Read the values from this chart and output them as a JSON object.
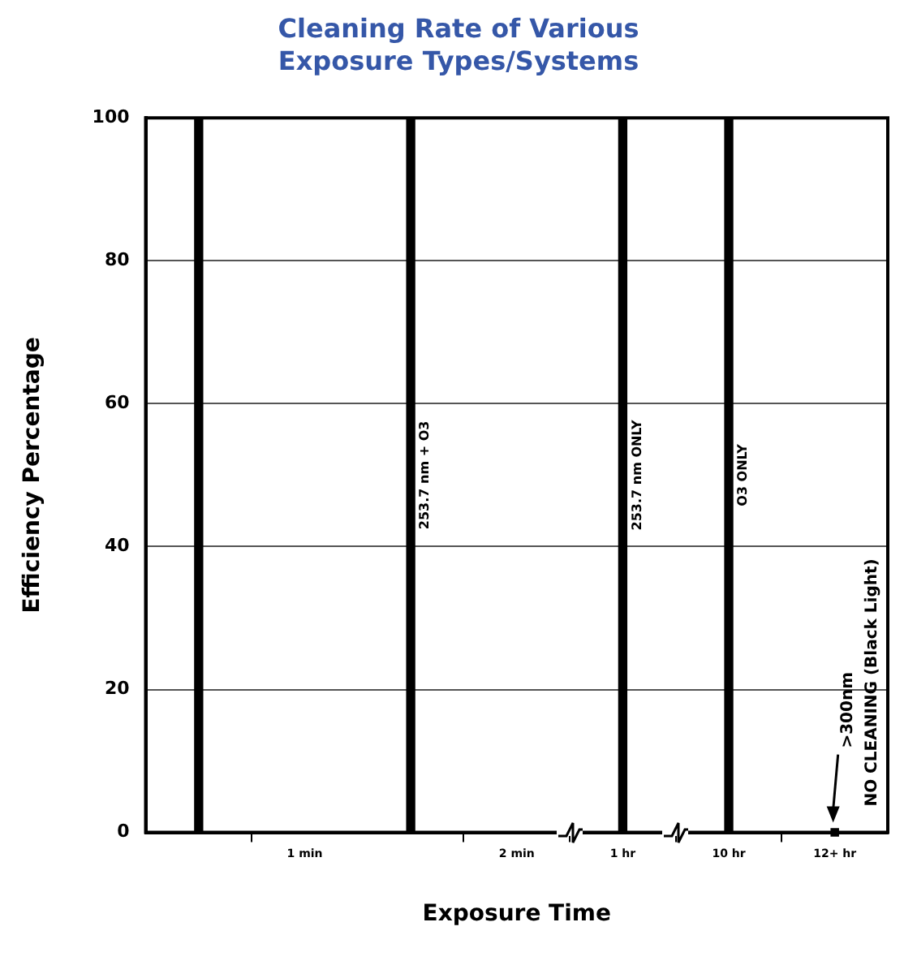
{
  "chart_data": {
    "type": "bar",
    "title": "Cleaning Rate of Various Exposure Types/Systems",
    "xlabel": "Exposure Time",
    "ylabel": "Efficiency Percentage",
    "categories": [
      null,
      "1 min",
      null,
      "2 min",
      "1 hr",
      "10 hr",
      "12+ hr"
    ],
    "series": [
      {
        "color": "#000000",
        "values": [
          100,
          null,
          null,
          null,
          null,
          null,
          null
        ]
      },
      {
        "name": "253.7 nm + O3",
        "color": "#000000",
        "values": [
          null,
          null,
          100,
          null,
          null,
          null,
          null
        ]
      },
      {
        "name": "253.7 nm ONLY",
        "color": "#000000",
        "values": [
          null,
          null,
          null,
          null,
          100,
          null,
          null
        ]
      },
      {
        "name": "O3 ONLY",
        "color": "#000000",
        "values": [
          null,
          null,
          null,
          null,
          null,
          100,
          null
        ]
      },
      {
        "type": "scatter",
        "color": "#000000",
        "x": [
          "12+ hr"
        ],
        "values": [
          0
        ]
      }
    ],
    "annotations": [
      {
        "text": ">300nm NO CLEANING (Black Light)",
        "x": "12+ hr",
        "y": 0
      }
    ],
    "ylim": [
      0,
      100
    ],
    "yticks": [
      0,
      20,
      40,
      60,
      80,
      100
    ],
    "grid": "y",
    "legend": false,
    "marker": "square"
  }
}
